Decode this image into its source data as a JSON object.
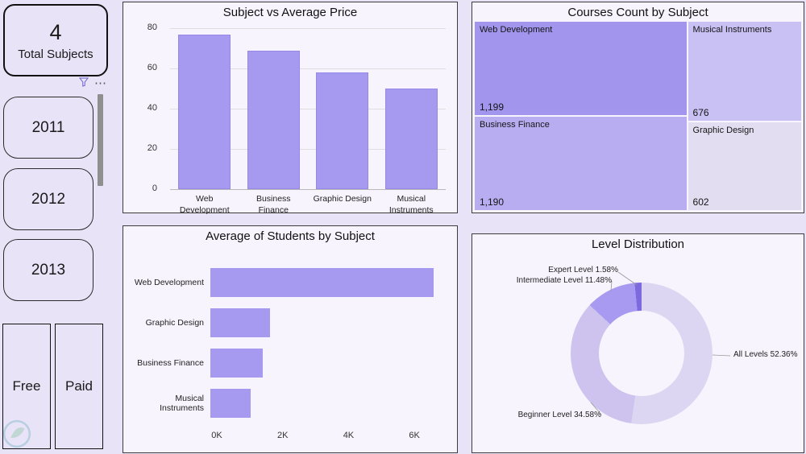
{
  "sidebar": {
    "kpi_value": "4",
    "kpi_label": "Total Subjects",
    "slicer_more_glyph": "⋯",
    "years": [
      "2011",
      "2012",
      "2013"
    ],
    "free_label": "Free",
    "paid_label": "Paid",
    "icons": {
      "filter": "funnel-icon",
      "watermark": "leaf-logo"
    }
  },
  "colors": {
    "page_bg": "#e9e3f7",
    "card_bg": "#f7f4fd",
    "bar": "#a69af0",
    "accent_dark": "#7e6adf"
  },
  "chart_data": [
    {
      "id": "avg_price",
      "type": "bar",
      "title": "Subject vs Average Price",
      "categories": [
        "Web Development",
        "Business Finance",
        "Graphic Design",
        "Musical Instruments"
      ],
      "values": [
        77,
        69,
        58,
        50
      ],
      "ylim": [
        0,
        80
      ],
      "yticks": [
        0,
        20,
        40,
        60,
        80
      ],
      "xlabel": "",
      "ylabel": "",
      "grid": true,
      "bar_color": "#a69af0",
      "legend": "none"
    },
    {
      "id": "courses_count",
      "type": "treemap",
      "title": "Courses Count by Subject",
      "items": [
        {
          "label": "Web Development",
          "value": 1199,
          "display": "1,199",
          "color": "#a295ee"
        },
        {
          "label": "Business Finance",
          "value": 1190,
          "display": "1,190",
          "color": "#b9adf2"
        },
        {
          "label": "Musical Instruments",
          "value": 676,
          "display": "676",
          "color": "#c9c0f3"
        },
        {
          "label": "Graphic Design",
          "value": 602,
          "display": "602",
          "color": "#e3ddf1"
        }
      ],
      "layout": "left column: Web Development + Business Finance; right column: Musical Instruments + Graphic Design"
    },
    {
      "id": "avg_students",
      "type": "bar",
      "orientation": "horizontal",
      "title": "Average of Students by Subject",
      "categories": [
        "Web Development",
        "Graphic Design",
        "Business Finance",
        "Musical Instruments"
      ],
      "values": [
        6600,
        1750,
        1550,
        1200
      ],
      "xlim": [
        0,
        7000
      ],
      "xticks": [
        0,
        2000,
        4000,
        6000
      ],
      "xtick_labels": [
        "0K",
        "2K",
        "4K",
        "6K"
      ],
      "bar_color": "#a69af0",
      "legend": "none"
    },
    {
      "id": "level_distribution",
      "type": "pie",
      "subtype": "donut",
      "title": "Level Distribution",
      "slices": [
        {
          "label": "All Levels",
          "pct": 52.36,
          "display": "All Levels 52.36%",
          "color": "#dcd6f2"
        },
        {
          "label": "Beginner Level",
          "pct": 34.58,
          "display": "Beginner Level 34.58%",
          "color": "#cdc3ee"
        },
        {
          "label": "Intermediate Level",
          "pct": 11.48,
          "display": "Intermediate Level 11.48%",
          "color": "#a89af0"
        },
        {
          "label": "Expert Level",
          "pct": 1.58,
          "display": "Expert Level 1.58%",
          "color": "#7e6adf"
        }
      ],
      "legend": "callout-labels"
    }
  ]
}
